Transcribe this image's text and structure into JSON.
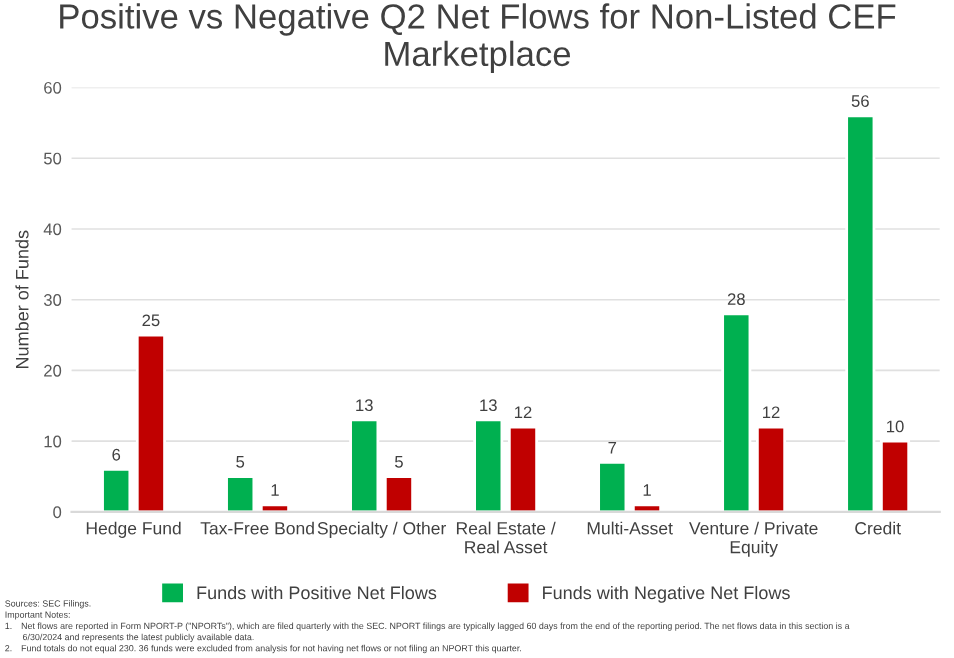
{
  "chart_data": {
    "type": "bar",
    "title": "Positive vs Negative Q2 Net Flows for Non-Listed CEF Marketplace",
    "ylabel": "Number of Funds",
    "categories": [
      "Hedge Fund",
      "Tax-Free Bond",
      "Specialty / Other",
      "Real Estate /\nReal Asset",
      "Multi-Asset",
      "Venture / Private\nEquity",
      "Credit"
    ],
    "series": [
      {
        "name": "Funds with Positive Net Flows",
        "color": "#00b050",
        "values": [
          6,
          5,
          13,
          13,
          7,
          28,
          56
        ]
      },
      {
        "name": "Funds with Negative Net Flows",
        "color": "#c00000",
        "values": [
          25,
          1,
          5,
          12,
          1,
          12,
          10
        ]
      }
    ],
    "ylim": [
      0,
      60
    ],
    "yticks": [
      0,
      10,
      20,
      30,
      40,
      50,
      60
    ],
    "grid": "y",
    "legend": "bottom",
    "data_labels": true,
    "annotations": [
      "Sources: SEC Filings.",
      "Important Notes:",
      "1. Net flows are reported in Form NPORT-P (\"NPORTs\"), which are filed quarterly with the SEC. NPORT filings are typically lagged 60 days from the end of the reporting period. The net flows data in this section is a",
      "  6/30/2024 and represents the latest publicly available data.",
      "2. Fund totals do not equal 230. 36 funds were excluded from analysis for not having net flows or not filing an NPORT this quarter."
    ]
  }
}
